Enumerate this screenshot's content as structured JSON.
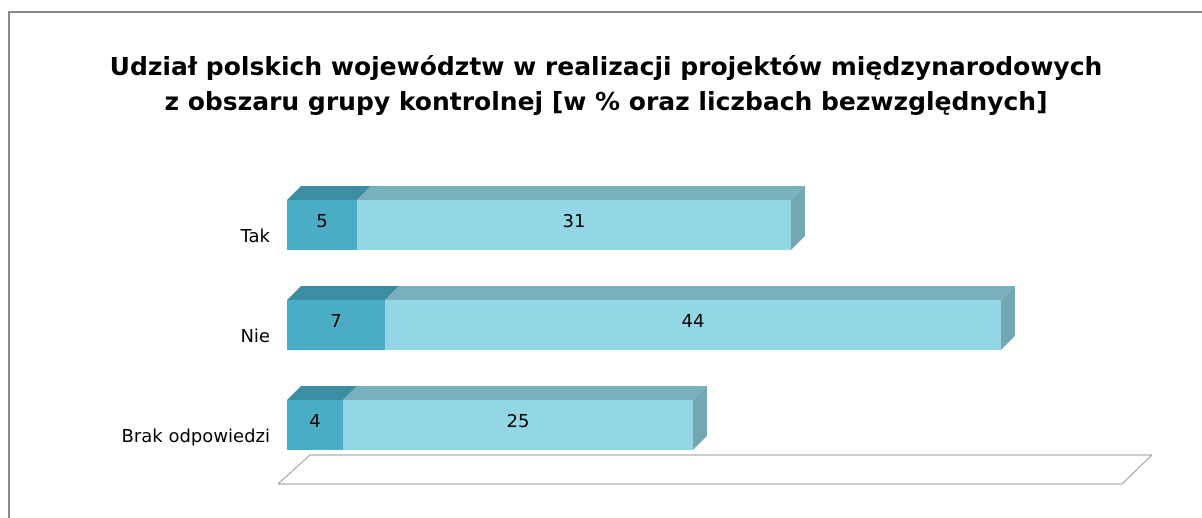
{
  "chart_data": {
    "type": "bar",
    "orientation": "horizontal",
    "stacked": true,
    "title": [
      "Udział polskich województw w realizacji projektów międzynarodowych",
      "z obszaru grupy kontrolnej [w % oraz liczbach bezwzględnych]"
    ],
    "categories": [
      "Tak",
      "Nie",
      "Brak odpowiedzi"
    ],
    "series": [
      {
        "color": "#4bacc6",
        "values": [
          5,
          7,
          4
        ]
      },
      {
        "color": "#93d7e6",
        "values": [
          31,
          44,
          25
        ]
      }
    ]
  }
}
